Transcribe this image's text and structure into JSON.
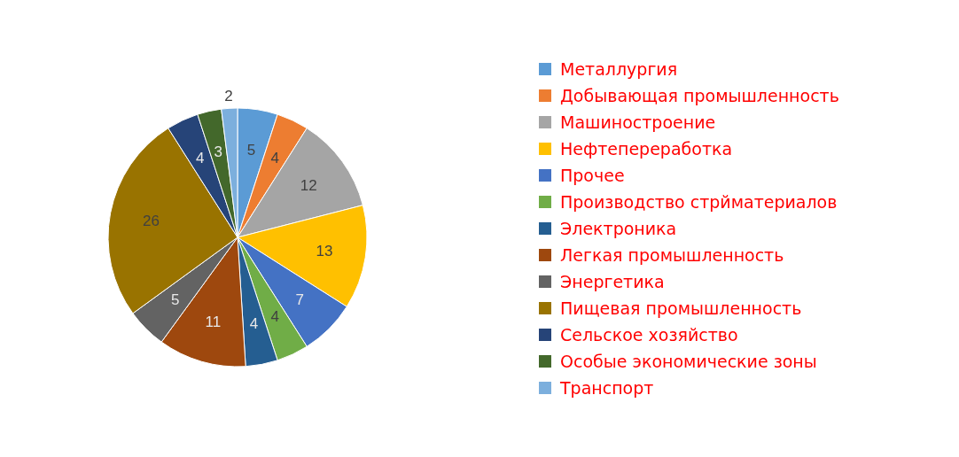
{
  "chart_data": {
    "type": "pie",
    "categories": [
      "Металлургия",
      "Добывающая промышленность",
      "Машиностроение",
      "Нефтепереработка",
      "Прочее",
      "Производство стрйматериалов",
      "Электроника",
      "Легкая промышленность",
      "Энергетика",
      "Пищевая промышленность",
      "Сельское хозяйство",
      "Особые экономические зоны",
      "Транспорт"
    ],
    "values": [
      5,
      4,
      12,
      13,
      7,
      4,
      4,
      11,
      5,
      26,
      4,
      3,
      2
    ],
    "colors": [
      "#5b9bd5",
      "#ed7d31",
      "#a5a5a5",
      "#ffc000",
      "#4472c4",
      "#70ad47",
      "#255e91",
      "#9e480e",
      "#636363",
      "#997300",
      "#264478",
      "#43682b",
      "#7cafdd"
    ],
    "data_labels": true,
    "legend": "right"
  }
}
